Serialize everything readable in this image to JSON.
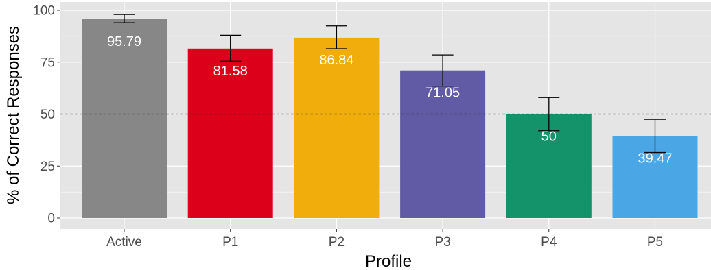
{
  "chart_data": {
    "type": "bar",
    "categories": [
      "Active",
      "P1",
      "P2",
      "P3",
      "P4",
      "P5"
    ],
    "values": [
      95.79,
      81.58,
      86.84,
      71.05,
      50,
      39.47
    ],
    "data_labels": [
      "95.79",
      "81.58",
      "86.84",
      "71.05",
      "50",
      "39.47"
    ],
    "error_bars": [
      {
        "low": 94,
        "high": 98
      },
      {
        "low": 75.5,
        "high": 88
      },
      {
        "low": 81.5,
        "high": 92.5
      },
      {
        "low": 63.5,
        "high": 78.5
      },
      {
        "low": 42,
        "high": 58
      },
      {
        "low": 31.5,
        "high": 47.5
      }
    ],
    "colors": [
      "#878787",
      "#dc001a",
      "#f0ad0c",
      "#615ba5",
      "#14926a",
      "#4aa6e4"
    ],
    "xlabel": "Profile",
    "ylabel": "% of Correct Responses",
    "ylim": [
      0,
      100
    ],
    "yticks": [
      "0",
      "25",
      "50",
      "75",
      "100"
    ],
    "reference_line": 50,
    "grid": true,
    "panel_background": "#e5e5e5",
    "grid_color": "#ffffff"
  }
}
